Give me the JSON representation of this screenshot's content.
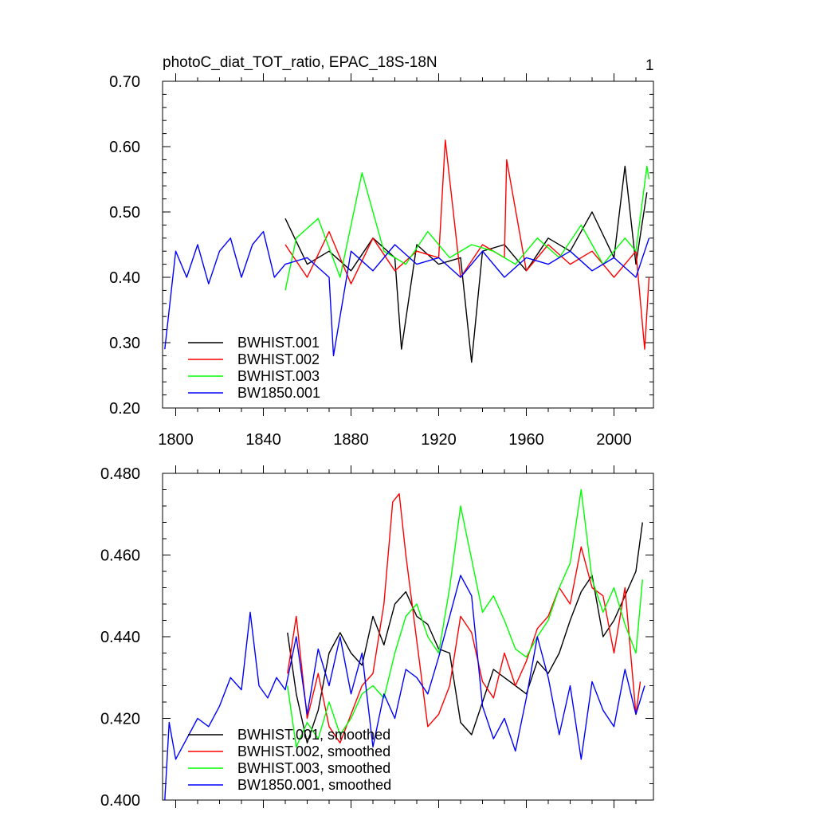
{
  "panel_number": "1",
  "colors": {
    "BWHIST.001": "#000000",
    "BWHIST.002": "#ff0000",
    "BWHIST.003": "#00ff00",
    "BW1850.001": "#0000ff"
  },
  "chart_data": [
    {
      "type": "line",
      "title": "photoC_diat_TOT_ratio, EPAC_18S-18N",
      "xlabel": "",
      "ylabel": "",
      "xlim": [
        1794,
        2018
      ],
      "ylim": [
        0.2,
        0.7
      ],
      "xticks": [
        1800,
        1840,
        1880,
        1920,
        1960,
        2000
      ],
      "xtick_labels": [
        "1800",
        "1840",
        "1880",
        "1920",
        "1960",
        "2000"
      ],
      "yticks": [
        0.2,
        0.3,
        0.4,
        0.5,
        0.6,
        0.7
      ],
      "ytick_labels": [
        "0.20",
        "0.30",
        "0.40",
        "0.50",
        "0.60",
        "0.70"
      ],
      "legend": [
        "BWHIST.001",
        "BWHIST.002",
        "BWHIST.003",
        "BW1850.001"
      ],
      "legend_position": "bottom-left",
      "series": [
        {
          "name": "BWHIST.001",
          "x": [
            1850,
            1860,
            1870,
            1880,
            1890,
            1900,
            1903,
            1910,
            1920,
            1930,
            1935,
            1940,
            1950,
            1960,
            1970,
            1980,
            1990,
            2000,
            2005,
            2010,
            2015
          ],
          "values": [
            0.49,
            0.42,
            0.44,
            0.41,
            0.46,
            0.43,
            0.29,
            0.45,
            0.42,
            0.43,
            0.27,
            0.44,
            0.45,
            0.41,
            0.46,
            0.44,
            0.5,
            0.43,
            0.57,
            0.42,
            0.53
          ]
        },
        {
          "name": "BWHIST.002",
          "x": [
            1850,
            1860,
            1870,
            1880,
            1890,
            1900,
            1910,
            1920,
            1923,
            1930,
            1940,
            1950,
            1951,
            1960,
            1970,
            1980,
            1990,
            2000,
            2010,
            2014,
            2016
          ],
          "values": [
            0.45,
            0.4,
            0.47,
            0.39,
            0.46,
            0.41,
            0.44,
            0.43,
            0.61,
            0.4,
            0.45,
            0.43,
            0.58,
            0.41,
            0.45,
            0.42,
            0.44,
            0.4,
            0.44,
            0.29,
            0.4
          ]
        },
        {
          "name": "BWHIST.003",
          "x": [
            1850,
            1855,
            1865,
            1875,
            1885,
            1895,
            1905,
            1915,
            1925,
            1935,
            1945,
            1955,
            1965,
            1975,
            1985,
            1995,
            2005,
            2010,
            2015,
            2016
          ],
          "values": [
            0.38,
            0.46,
            0.49,
            0.4,
            0.56,
            0.44,
            0.42,
            0.47,
            0.43,
            0.45,
            0.44,
            0.42,
            0.46,
            0.43,
            0.48,
            0.42,
            0.46,
            0.44,
            0.57,
            0.55
          ]
        },
        {
          "name": "BW1850.001",
          "x": [
            1795,
            1800,
            1805,
            1810,
            1815,
            1820,
            1825,
            1830,
            1835,
            1840,
            1845,
            1850,
            1860,
            1870,
            1872,
            1880,
            1890,
            1900,
            1910,
            1920,
            1930,
            1940,
            1950,
            1960,
            1970,
            1980,
            1990,
            2000,
            2010,
            2016
          ],
          "values": [
            0.29,
            0.44,
            0.4,
            0.45,
            0.39,
            0.44,
            0.46,
            0.4,
            0.45,
            0.47,
            0.4,
            0.42,
            0.43,
            0.4,
            0.28,
            0.44,
            0.41,
            0.45,
            0.42,
            0.43,
            0.4,
            0.44,
            0.4,
            0.43,
            0.42,
            0.44,
            0.41,
            0.43,
            0.4,
            0.46
          ]
        }
      ]
    },
    {
      "type": "line",
      "title": "",
      "xlabel": "",
      "ylabel": "",
      "xlim": [
        1794,
        2018
      ],
      "ylim": [
        0.4,
        0.48
      ],
      "xticks": [
        1800,
        1840,
        1880,
        1920,
        1960,
        2000
      ],
      "yticks": [
        0.4,
        0.42,
        0.44,
        0.46,
        0.48
      ],
      "ytick_labels": [
        "0.400",
        "0.420",
        "0.440",
        "0.460",
        "0.480"
      ],
      "legend": [
        "BWHIST.001, smoothed",
        "BWHIST.002, smoothed",
        "BWHIST.003, smoothed",
        "BW1850.001, smoothed"
      ],
      "legend_position": "bottom-left",
      "series": [
        {
          "name": "BWHIST.001, smoothed",
          "x": [
            1851,
            1855,
            1860,
            1865,
            1870,
            1875,
            1880,
            1885,
            1890,
            1895,
            1900,
            1905,
            1910,
            1915,
            1920,
            1925,
            1930,
            1935,
            1940,
            1945,
            1950,
            1955,
            1960,
            1965,
            1970,
            1975,
            1980,
            1985,
            1990,
            1995,
            2000,
            2005,
            2010,
            2013
          ],
          "values": [
            0.441,
            0.426,
            0.414,
            0.422,
            0.436,
            0.441,
            0.436,
            0.433,
            0.445,
            0.438,
            0.448,
            0.451,
            0.445,
            0.443,
            0.437,
            0.436,
            0.419,
            0.416,
            0.424,
            0.432,
            0.43,
            0.428,
            0.426,
            0.434,
            0.431,
            0.436,
            0.444,
            0.451,
            0.455,
            0.44,
            0.444,
            0.45,
            0.456,
            0.468
          ]
        },
        {
          "name": "BWHIST.002, smoothed",
          "x": [
            1851,
            1855,
            1860,
            1865,
            1870,
            1875,
            1880,
            1885,
            1890,
            1895,
            1899,
            1902,
            1905,
            1910,
            1915,
            1920,
            1925,
            1930,
            1935,
            1940,
            1945,
            1950,
            1955,
            1960,
            1965,
            1970,
            1975,
            1980,
            1985,
            1990,
            1995,
            2000,
            2005,
            2010,
            2012
          ],
          "values": [
            0.431,
            0.445,
            0.42,
            0.431,
            0.418,
            0.414,
            0.421,
            0.428,
            0.431,
            0.448,
            0.473,
            0.475,
            0.46,
            0.439,
            0.418,
            0.421,
            0.428,
            0.445,
            0.441,
            0.429,
            0.425,
            0.436,
            0.428,
            0.434,
            0.442,
            0.445,
            0.452,
            0.448,
            0.462,
            0.452,
            0.45,
            0.436,
            0.452,
            0.421,
            0.429
          ]
        },
        {
          "name": "BWHIST.003, smoothed",
          "x": [
            1851,
            1855,
            1860,
            1865,
            1870,
            1875,
            1880,
            1885,
            1890,
            1895,
            1900,
            1905,
            1910,
            1915,
            1920,
            1925,
            1930,
            1935,
            1940,
            1945,
            1950,
            1955,
            1960,
            1965,
            1970,
            1975,
            1980,
            1985,
            1990,
            1995,
            2000,
            2005,
            2010,
            2013
          ],
          "values": [
            0.428,
            0.413,
            0.419,
            0.415,
            0.424,
            0.416,
            0.42,
            0.426,
            0.428,
            0.425,
            0.436,
            0.445,
            0.448,
            0.44,
            0.436,
            0.452,
            0.472,
            0.459,
            0.446,
            0.45,
            0.444,
            0.437,
            0.435,
            0.44,
            0.444,
            0.452,
            0.458,
            0.476,
            0.454,
            0.446,
            0.452,
            0.443,
            0.436,
            0.454
          ]
        },
        {
          "name": "BW1850.001, smoothed",
          "x": [
            1795,
            1797,
            1800,
            1805,
            1810,
            1815,
            1820,
            1825,
            1830,
            1834,
            1838,
            1842,
            1846,
            1850,
            1855,
            1860,
            1865,
            1870,
            1875,
            1880,
            1885,
            1890,
            1895,
            1900,
            1905,
            1910,
            1915,
            1920,
            1925,
            1930,
            1935,
            1940,
            1945,
            1950,
            1955,
            1960,
            1965,
            1970,
            1975,
            1980,
            1985,
            1990,
            1995,
            2000,
            2005,
            2010,
            2014
          ],
          "values": [
            0.4,
            0.419,
            0.41,
            0.415,
            0.42,
            0.418,
            0.423,
            0.43,
            0.427,
            0.446,
            0.428,
            0.425,
            0.43,
            0.427,
            0.44,
            0.421,
            0.437,
            0.428,
            0.44,
            0.426,
            0.436,
            0.413,
            0.426,
            0.42,
            0.432,
            0.43,
            0.426,
            0.435,
            0.445,
            0.455,
            0.45,
            0.423,
            0.415,
            0.42,
            0.412,
            0.425,
            0.44,
            0.43,
            0.416,
            0.428,
            0.41,
            0.429,
            0.422,
            0.418,
            0.432,
            0.421,
            0.428
          ]
        }
      ]
    }
  ]
}
